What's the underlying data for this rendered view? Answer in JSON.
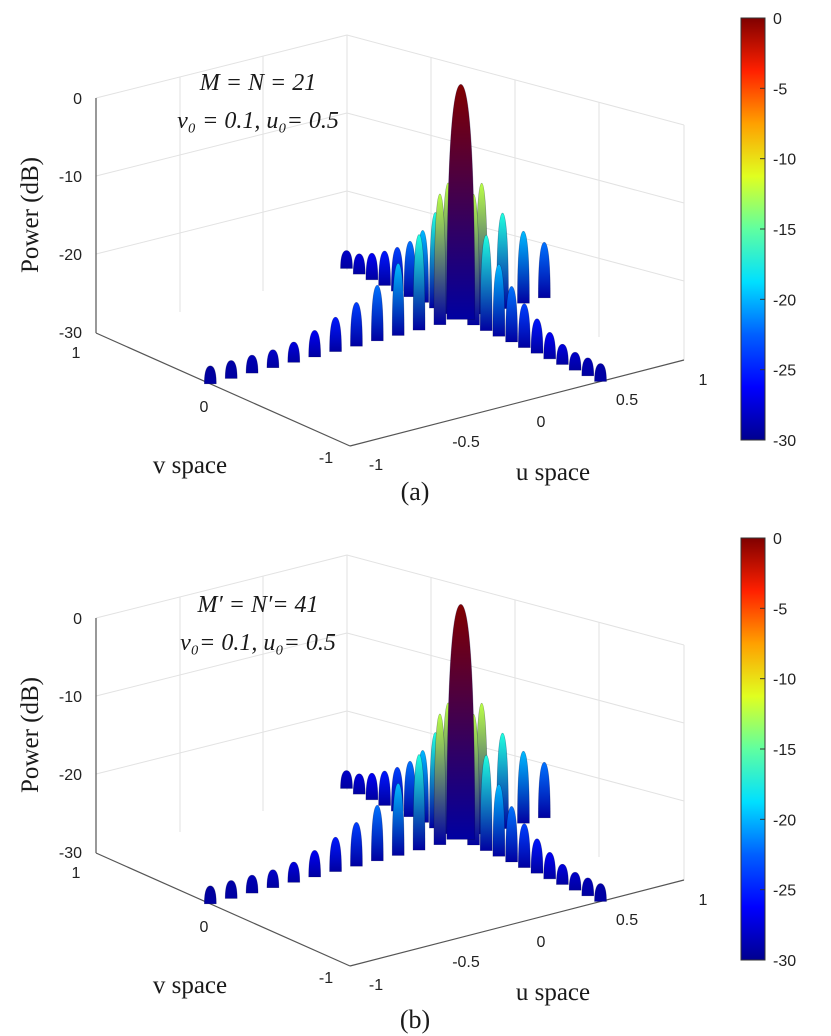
{
  "figure": {
    "panels_count": 2
  },
  "colors": {
    "colormap": [
      "#00008f",
      "#0000ff",
      "#0080ff",
      "#00ffff",
      "#80ff80",
      "#ffff00",
      "#ff8000",
      "#ff0000",
      "#800000"
    ],
    "grid": "#e2e2e2",
    "axis": "#555555"
  },
  "chart_data": [
    {
      "type": "surface3d",
      "caption": "(a)",
      "annotation": {
        "line1": "M = N = 21",
        "line2": "v₀ = 0.1, u₀= 0.5"
      },
      "zlabel": "Power (dB)",
      "xlabel": "u space",
      "ylabel": "v space",
      "zticks": [
        "0",
        "-10",
        "-20",
        "-30"
      ],
      "uticks": [
        "-1",
        "-0.5",
        "0",
        "0.5",
        "1"
      ],
      "vticks": [
        "1",
        "0",
        "-1"
      ],
      "zlim": [
        -30,
        0
      ],
      "ulim": [
        -1,
        1
      ],
      "vlim": [
        -1,
        1
      ],
      "peak": {
        "u": 0.5,
        "v": 0.1,
        "power_db": 0
      },
      "array_size": 21,
      "colorbar": {
        "ticks": [
          "0",
          "-5",
          "-10",
          "-15",
          "-20",
          "-25",
          "-30"
        ],
        "range": [
          -30,
          0
        ]
      },
      "sidelobe_db": [
        0,
        -13.3,
        -17.8,
        -20.8,
        -22.9,
        -24.4,
        -25.6,
        -26.6,
        -27.4,
        -28.1,
        -28.7,
        -29.2,
        -29.6
      ]
    },
    {
      "type": "surface3d",
      "caption": "(b)",
      "annotation": {
        "line1": "M′ = N′= 41",
        "line2": "v₀= 0.1, u₀= 0.5"
      },
      "zlabel": "Power (dB)",
      "xlabel": "u space",
      "ylabel": "v space",
      "zticks": [
        "0",
        "-10",
        "-20",
        "-30"
      ],
      "uticks": [
        "-1",
        "-0.5",
        "0",
        "0.5",
        "1"
      ],
      "vticks": [
        "1",
        "0",
        "-1"
      ],
      "zlim": [
        -30,
        0
      ],
      "ulim": [
        -1,
        1
      ],
      "vlim": [
        -1,
        1
      ],
      "peak": {
        "u": 0.5,
        "v": 0.1,
        "power_db": 0
      },
      "array_size": 41,
      "colorbar": {
        "ticks": [
          "0",
          "-5",
          "-10",
          "-15",
          "-20",
          "-25",
          "-30"
        ],
        "range": [
          -30,
          0
        ]
      },
      "sidelobe_db": [
        0,
        -13.3,
        -17.8,
        -20.8,
        -22.9,
        -24.4,
        -25.6,
        -26.6,
        -27.4,
        -28.1,
        -28.7,
        -29.2,
        -29.6
      ]
    }
  ]
}
